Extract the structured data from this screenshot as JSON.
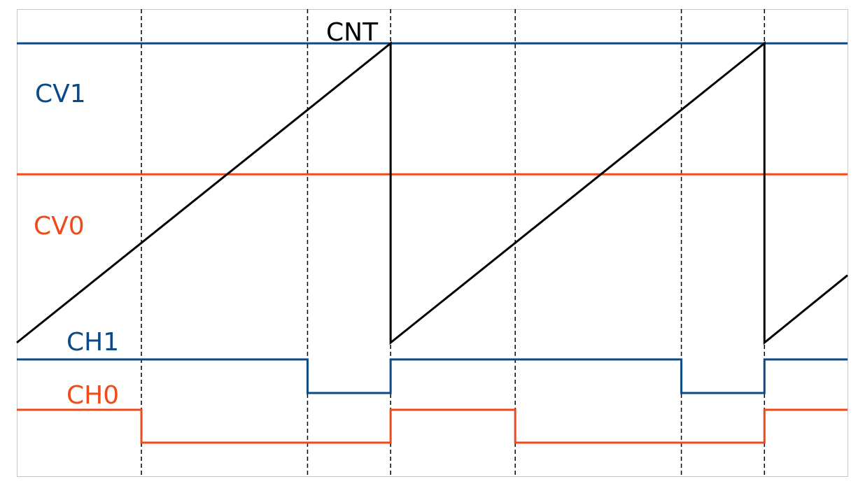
{
  "labels": {
    "cnt": "CNT",
    "cv1": "CV1",
    "cv0": "CV0",
    "ch1": "CH1",
    "ch0": "CH0"
  },
  "colors": {
    "cnt": "#000000",
    "ch1": "#0b4a86",
    "ch0": "#f04a1a",
    "frame": "#c8c8c8",
    "marker": "#000000"
  },
  "signals": {
    "cv1_level": 0.8,
    "cv0_level": 0.45,
    "cnt_sawtooth": [
      {
        "t": 0.0,
        "v": 0.0
      },
      {
        "t": 0.45,
        "v": 0.8
      },
      {
        "t": 0.45,
        "v": 0.0
      },
      {
        "t": 0.9,
        "v": 0.8
      },
      {
        "t": 0.9,
        "v": 0.0
      },
      {
        "t": 1.0,
        "v": 0.18
      }
    ],
    "ch1_steps": [
      {
        "t": 0.0,
        "level": 1
      },
      {
        "t": 0.35,
        "level": 0
      },
      {
        "t": 0.45,
        "level": 1
      },
      {
        "t": 0.8,
        "level": 0
      },
      {
        "t": 0.9,
        "level": 1
      }
    ],
    "ch0_steps": [
      {
        "t": 0.0,
        "level": 1
      },
      {
        "t": 0.15,
        "level": 0
      },
      {
        "t": 0.45,
        "level": 1
      },
      {
        "t": 0.6,
        "level": 0
      },
      {
        "t": 0.9,
        "level": 1
      }
    ],
    "event_markers": [
      0.15,
      0.35,
      0.45,
      0.6,
      0.8,
      0.9
    ]
  }
}
